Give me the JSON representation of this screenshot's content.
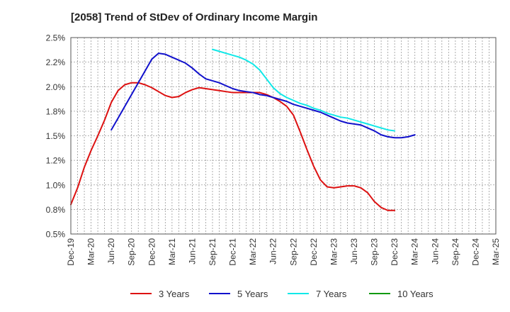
{
  "chart_data": {
    "type": "line",
    "title": "[2058]  Trend of StDev of Ordinary Income Margin",
    "xlabel": "",
    "ylabel": "",
    "x_ticks": [
      "Dec-19",
      "Mar-20",
      "Jun-20",
      "Sep-20",
      "Dec-20",
      "Mar-21",
      "Jun-21",
      "Sep-21",
      "Dec-21",
      "Mar-22",
      "Jun-22",
      "Sep-22",
      "Dec-22",
      "Mar-23",
      "Jun-23",
      "Sep-23",
      "Dec-23",
      "Mar-24",
      "Jun-24",
      "Sep-24",
      "Dec-24",
      "Mar-25"
    ],
    "y_ticks": [
      "0.5%",
      "0.8%",
      "1.0%",
      "1.2%",
      "1.5%",
      "1.8%",
      "2.0%",
      "2.2%",
      "2.5%"
    ],
    "ylim": [
      0.5,
      2.5
    ],
    "grid": true,
    "legend_position": "bottom",
    "series": [
      {
        "name": "3 Years",
        "color": "#dd1111",
        "points": [
          [
            0,
            0.8
          ],
          [
            1,
            0.97
          ],
          [
            2,
            1.18
          ],
          [
            3,
            1.35
          ],
          [
            4,
            1.5
          ],
          [
            5,
            1.66
          ],
          [
            6,
            1.84
          ],
          [
            7,
            1.96
          ],
          [
            8,
            2.02
          ],
          [
            9,
            2.04
          ],
          [
            10,
            2.04
          ],
          [
            11,
            2.02
          ],
          [
            12,
            1.99
          ],
          [
            13,
            1.95
          ],
          [
            14,
            1.91
          ],
          [
            15,
            1.89
          ],
          [
            16,
            1.9
          ],
          [
            17,
            1.94
          ],
          [
            18,
            1.97
          ],
          [
            19,
            1.99
          ],
          [
            20,
            1.98
          ],
          [
            21,
            1.97
          ],
          [
            22,
            1.96
          ],
          [
            23,
            1.95
          ],
          [
            24,
            1.94
          ],
          [
            25,
            1.94
          ],
          [
            26,
            1.94
          ],
          [
            27,
            1.94
          ],
          [
            28,
            1.94
          ],
          [
            29,
            1.92
          ],
          [
            30,
            1.89
          ],
          [
            31,
            1.85
          ],
          [
            32,
            1.8
          ],
          [
            33,
            1.71
          ],
          [
            34,
            1.54
          ],
          [
            35,
            1.36
          ],
          [
            36,
            1.19
          ],
          [
            37,
            1.05
          ],
          [
            38,
            0.98
          ],
          [
            39,
            0.97
          ],
          [
            40,
            0.98
          ],
          [
            41,
            0.99
          ],
          [
            42,
            0.99
          ],
          [
            43,
            0.97
          ],
          [
            44,
            0.92
          ],
          [
            45,
            0.83
          ],
          [
            46,
            0.77
          ],
          [
            47,
            0.74
          ],
          [
            48,
            0.74
          ]
        ]
      },
      {
        "name": "5 Years",
        "color": "#1111cc",
        "points": [
          [
            6,
            1.56
          ],
          [
            7,
            1.68
          ],
          [
            8,
            1.8
          ],
          [
            9,
            1.92
          ],
          [
            10,
            2.04
          ],
          [
            11,
            2.16
          ],
          [
            12,
            2.28
          ],
          [
            13,
            2.34
          ],
          [
            14,
            2.33
          ],
          [
            15,
            2.3
          ],
          [
            16,
            2.27
          ],
          [
            17,
            2.24
          ],
          [
            18,
            2.19
          ],
          [
            19,
            2.13
          ],
          [
            20,
            2.08
          ],
          [
            21,
            2.06
          ],
          [
            22,
            2.04
          ],
          [
            23,
            2.01
          ],
          [
            24,
            1.98
          ],
          [
            25,
            1.96
          ],
          [
            26,
            1.95
          ],
          [
            27,
            1.94
          ],
          [
            28,
            1.92
          ],
          [
            29,
            1.91
          ],
          [
            30,
            1.89
          ],
          [
            31,
            1.87
          ],
          [
            32,
            1.85
          ],
          [
            33,
            1.82
          ],
          [
            34,
            1.8
          ],
          [
            35,
            1.78
          ],
          [
            36,
            1.76
          ],
          [
            37,
            1.74
          ],
          [
            38,
            1.71
          ],
          [
            39,
            1.68
          ],
          [
            40,
            1.65
          ],
          [
            41,
            1.63
          ],
          [
            42,
            1.62
          ],
          [
            43,
            1.61
          ],
          [
            44,
            1.58
          ],
          [
            45,
            1.55
          ],
          [
            46,
            1.51
          ],
          [
            47,
            1.49
          ],
          [
            48,
            1.48
          ],
          [
            49,
            1.48
          ],
          [
            50,
            1.49
          ],
          [
            51,
            1.51
          ]
        ]
      },
      {
        "name": "7 Years",
        "color": "#11e8e8",
        "points": [
          [
            21,
            2.38
          ],
          [
            22,
            2.36
          ],
          [
            23,
            2.34
          ],
          [
            24,
            2.32
          ],
          [
            25,
            2.3
          ],
          [
            26,
            2.27
          ],
          [
            27,
            2.23
          ],
          [
            28,
            2.17
          ],
          [
            29,
            2.08
          ],
          [
            30,
            1.99
          ],
          [
            31,
            1.93
          ],
          [
            32,
            1.89
          ],
          [
            33,
            1.86
          ],
          [
            34,
            1.83
          ],
          [
            35,
            1.81
          ],
          [
            36,
            1.78
          ],
          [
            37,
            1.76
          ],
          [
            38,
            1.73
          ],
          [
            39,
            1.71
          ],
          [
            40,
            1.69
          ],
          [
            41,
            1.68
          ],
          [
            42,
            1.66
          ],
          [
            43,
            1.64
          ],
          [
            44,
            1.62
          ],
          [
            45,
            1.6
          ],
          [
            46,
            1.58
          ],
          [
            47,
            1.56
          ],
          [
            48,
            1.55
          ]
        ]
      },
      {
        "name": "10 Years",
        "color": "#119911",
        "points": []
      }
    ]
  }
}
